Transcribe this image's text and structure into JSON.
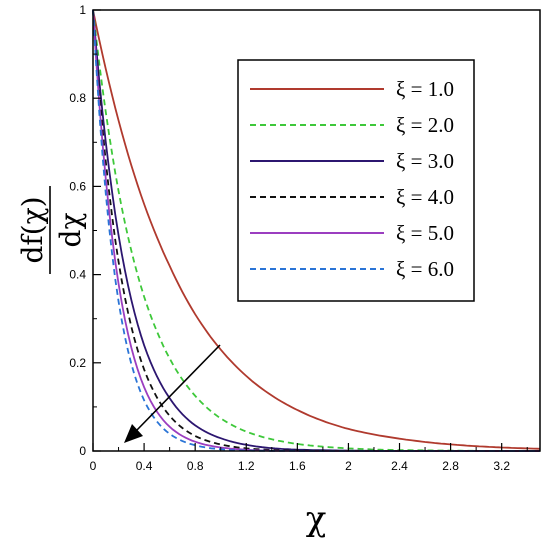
{
  "chart_data": {
    "type": "line",
    "xlabel": "χ",
    "ylabel": {
      "numerator": "df(χ)",
      "denominator": "dχ"
    },
    "xlim": [
      0,
      3.5
    ],
    "ylim": [
      0,
      1
    ],
    "x_ticks": [
      "0",
      "0.4",
      "0.8",
      "1.2",
      "1.6",
      "2",
      "2.4",
      "2.8",
      "3.2"
    ],
    "y_ticks": [
      "0",
      "0.2",
      "0.4",
      "0.6",
      "0.8",
      "1"
    ],
    "grid": false,
    "legend_position": "top-right",
    "annotation": "arrow indicating increasing ξ",
    "series": [
      {
        "name": "ξ = 1.0",
        "color": "#b03a2e",
        "dash": "solid",
        "x": [
          0,
          0.2,
          0.4,
          0.6,
          0.8,
          1.0,
          1.2,
          1.6,
          2.0,
          2.4,
          2.8,
          3.2,
          3.5
        ],
        "y": [
          1.0,
          0.75,
          0.56,
          0.42,
          0.31,
          0.23,
          0.17,
          0.093,
          0.05,
          0.028,
          0.015,
          0.008,
          0.005
        ]
      },
      {
        "name": "ξ = 2.0",
        "color": "#3ec83a",
        "dash": "dashed",
        "x": [
          0,
          0.2,
          0.4,
          0.6,
          0.8,
          1.0,
          1.2,
          1.6,
          2.0,
          2.4,
          2.8,
          3.2,
          3.5
        ],
        "y": [
          1.0,
          0.59,
          0.35,
          0.21,
          0.125,
          0.074,
          0.044,
          0.016,
          0.006,
          0.002,
          0.001,
          0.0,
          0.0
        ]
      },
      {
        "name": "ξ = 3.0",
        "color": "#2c1670",
        "dash": "solid",
        "x": [
          0,
          0.2,
          0.4,
          0.6,
          0.8,
          1.0,
          1.2,
          1.6,
          2.0,
          2.4,
          2.8,
          3.2,
          3.5
        ],
        "y": [
          1.0,
          0.49,
          0.24,
          0.12,
          0.058,
          0.029,
          0.014,
          0.003,
          0.001,
          0.0,
          0.0,
          0.0,
          0.0
        ]
      },
      {
        "name": "ξ = 4.0",
        "color": "#111111",
        "dash": "dashed",
        "x": [
          0,
          0.2,
          0.4,
          0.6,
          0.8,
          1.0,
          1.2,
          1.6,
          2.0,
          2.4,
          2.8,
          3.2,
          3.5
        ],
        "y": [
          1.0,
          0.43,
          0.185,
          0.08,
          0.034,
          0.015,
          0.006,
          0.001,
          0.0,
          0.0,
          0.0,
          0.0,
          0.0
        ]
      },
      {
        "name": "ξ = 5.0",
        "color": "#9b3ec0",
        "dash": "solid",
        "x": [
          0,
          0.2,
          0.4,
          0.6,
          0.8,
          1.0,
          1.2,
          1.6,
          2.0,
          2.4,
          2.8,
          3.2,
          3.5
        ],
        "y": [
          1.0,
          0.38,
          0.145,
          0.055,
          0.021,
          0.008,
          0.003,
          0.0,
          0.0,
          0.0,
          0.0,
          0.0,
          0.0
        ]
      },
      {
        "name": "ξ = 6.0",
        "color": "#2a74d6",
        "dash": "dashed",
        "x": [
          0,
          0.2,
          0.4,
          0.6,
          0.8,
          1.0,
          1.2,
          1.6,
          2.0,
          2.4,
          2.8,
          3.2,
          3.5
        ],
        "y": [
          1.0,
          0.34,
          0.115,
          0.039,
          0.013,
          0.004,
          0.001,
          0.0,
          0.0,
          0.0,
          0.0,
          0.0,
          0.0
        ]
      }
    ]
  }
}
